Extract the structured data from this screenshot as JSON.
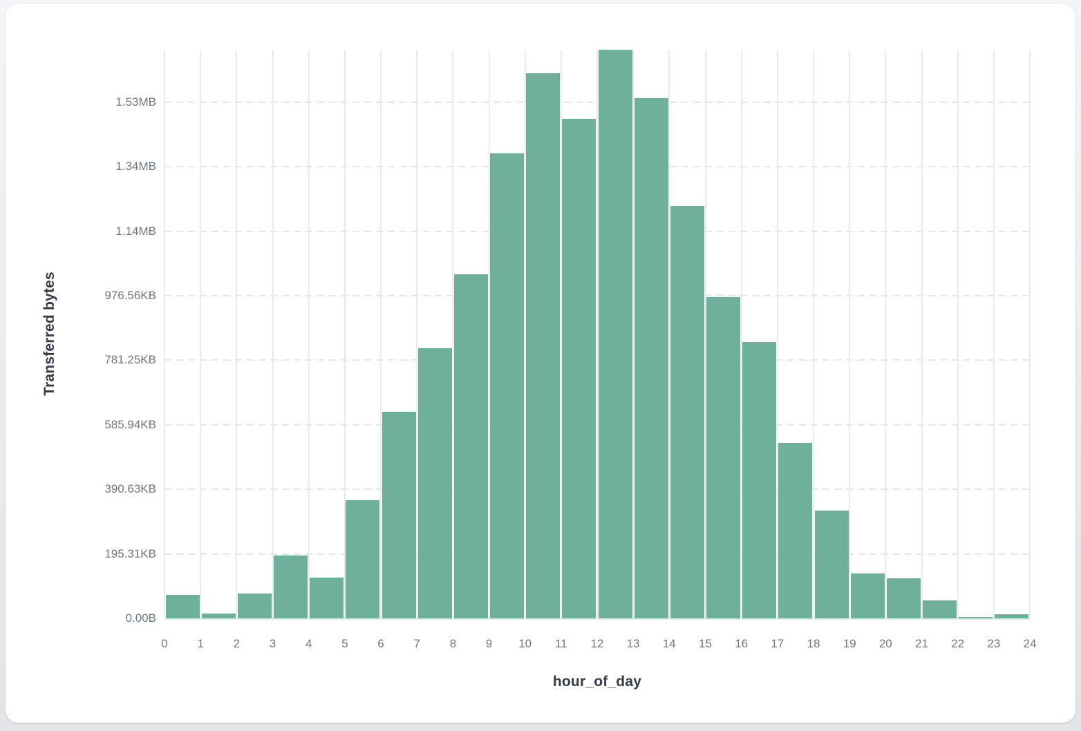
{
  "chart_data": {
    "type": "bar",
    "title": "",
    "xlabel": "hour_of_day",
    "ylabel": "Transferred bytes",
    "unit": "bytes",
    "categories": [
      0,
      1,
      2,
      3,
      4,
      5,
      6,
      7,
      8,
      9,
      10,
      11,
      12,
      13,
      14,
      15,
      16,
      17,
      18,
      19,
      20,
      21,
      22,
      23
    ],
    "values": [
      72000,
      14000,
      77000,
      195000,
      127000,
      367000,
      640000,
      838000,
      1066000,
      1441000,
      1690000,
      1548000,
      1762000,
      1612000,
      1278000,
      996000,
      856000,
      544000,
      334000,
      140000,
      124000,
      56000,
      4000,
      12000
    ],
    "ylim": [
      0,
      1762000
    ],
    "grid": true,
    "legend": null,
    "y_axis": {
      "ticks": [
        {
          "label": "0.00B",
          "value": 0
        },
        {
          "label": "195.31KB",
          "value": 200000
        },
        {
          "label": "390.63KB",
          "value": 400000
        },
        {
          "label": "585.94KB",
          "value": 600000
        },
        {
          "label": "781.25KB",
          "value": 800000
        },
        {
          "label": "976.56KB",
          "value": 1000000
        },
        {
          "label": "1.14MB",
          "value": 1200000
        },
        {
          "label": "1.34MB",
          "value": 1400000
        },
        {
          "label": "1.53MB",
          "value": 1600000
        }
      ]
    },
    "x_axis": {
      "ticks": [
        "0",
        "1",
        "2",
        "3",
        "4",
        "5",
        "6",
        "7",
        "8",
        "9",
        "10",
        "11",
        "12",
        "13",
        "14",
        "15",
        "16",
        "17",
        "18",
        "19",
        "20",
        "21",
        "22",
        "23",
        "24"
      ]
    }
  },
  "colors": {
    "bar": "#6FB09D",
    "grid_vertical": "#e9ebef",
    "grid_dashed": "#e3e6ec",
    "axis_line": "#e7e9ed",
    "tick_text": "#6e7684",
    "title_text": "#343c49",
    "card_bg": "#ffffff",
    "page_bg": "#eceef2"
  }
}
